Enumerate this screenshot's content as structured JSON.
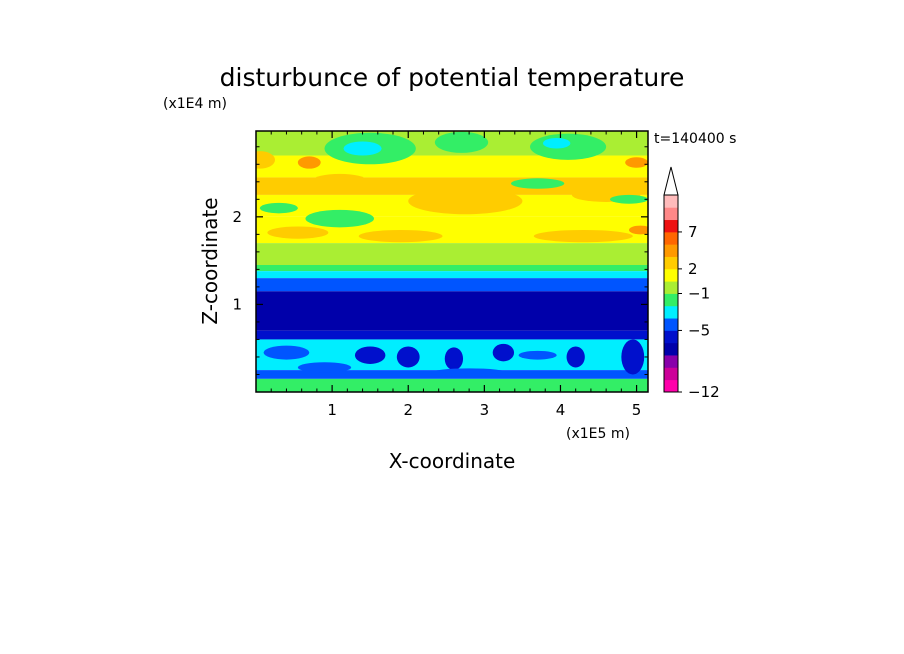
{
  "chart_data": {
    "type": "heatmap",
    "title": "disturbunce of potential temperature",
    "time_label": "t=140400 s",
    "xlabel": "X-coordinate",
    "ylabel": "Z-coordinate",
    "x_unit": "(x1E5 m)",
    "y_unit": "(x1E4 m)",
    "xlim": [
      0,
      5.15
    ],
    "ylim": [
      0,
      2.98
    ],
    "x_ticks": [
      "1",
      "2",
      "3",
      "4",
      "5"
    ],
    "y_ticks": [
      "1",
      "2"
    ],
    "colorbar": {
      "tick_labels": [
        "7",
        "2",
        "−1",
        "−5",
        "−12"
      ],
      "colors": [
        "#ff00aa",
        "#cc0099",
        "#8800aa",
        "#0000aa",
        "#0010cc",
        "#0055ff",
        "#00eeff",
        "#33ee66",
        "#aaee33",
        "#ffff00",
        "#ffcc00",
        "#ff9900",
        "#ff6600",
        "#ee1111",
        "#ff8888",
        "#ffbbbb"
      ],
      "extend_top": true
    },
    "layers": [
      {
        "z": [
          2.7,
          2.98
        ],
        "color": "#aaee33"
      },
      {
        "z": [
          2.45,
          2.7
        ],
        "color": "#ffff00"
      },
      {
        "z": [
          2.25,
          2.45
        ],
        "color": "#ffcc00"
      },
      {
        "z": [
          2.0,
          2.25
        ],
        "color": "#ffff00"
      },
      {
        "z": [
          1.7,
          2.0
        ],
        "color": "#ffff00"
      },
      {
        "z": [
          1.45,
          1.7
        ],
        "color": "#aaee33"
      },
      {
        "z": [
          1.38,
          1.45
        ],
        "color": "#33ee66"
      },
      {
        "z": [
          1.3,
          1.38
        ],
        "color": "#00eeff"
      },
      {
        "z": [
          1.15,
          1.3
        ],
        "color": "#0055ff"
      },
      {
        "z": [
          0.7,
          1.15
        ],
        "color": "#0000aa"
      },
      {
        "z": [
          0.6,
          0.7
        ],
        "color": "#0010cc"
      },
      {
        "z": [
          0.25,
          0.6
        ],
        "color": "#00eeff"
      },
      {
        "z": [
          0.15,
          0.25
        ],
        "color": "#0055ff"
      },
      {
        "z": [
          0.0,
          0.15
        ],
        "color": "#33ee66"
      }
    ],
    "features": [
      {
        "x": 0.05,
        "z": 2.65,
        "rx": 0.2,
        "rz": 0.1,
        "color": "#ffcc00"
      },
      {
        "x": 0.7,
        "z": 2.62,
        "rx": 0.15,
        "rz": 0.07,
        "color": "#ff9900"
      },
      {
        "x": 1.5,
        "z": 2.78,
        "rx": 0.6,
        "rz": 0.18,
        "color": "#33ee66"
      },
      {
        "x": 1.4,
        "z": 2.78,
        "rx": 0.25,
        "rz": 0.08,
        "color": "#00eeff"
      },
      {
        "x": 2.7,
        "z": 2.85,
        "rx": 0.35,
        "rz": 0.12,
        "color": "#33ee66"
      },
      {
        "x": 4.1,
        "z": 2.8,
        "rx": 0.5,
        "rz": 0.15,
        "color": "#33ee66"
      },
      {
        "x": 3.95,
        "z": 2.84,
        "rx": 0.18,
        "rz": 0.06,
        "color": "#00eeff"
      },
      {
        "x": 5.0,
        "z": 2.62,
        "rx": 0.15,
        "rz": 0.06,
        "color": "#ff9900"
      },
      {
        "x": 1.1,
        "z": 2.42,
        "rx": 0.35,
        "rz": 0.07,
        "color": "#ffcc00"
      },
      {
        "x": 2.75,
        "z": 2.18,
        "rx": 0.75,
        "rz": 0.15,
        "color": "#ffcc00"
      },
      {
        "x": 4.6,
        "z": 2.25,
        "rx": 0.45,
        "rz": 0.08,
        "color": "#ffcc00"
      },
      {
        "x": 0.3,
        "z": 2.1,
        "rx": 0.25,
        "rz": 0.06,
        "color": "#33ee66"
      },
      {
        "x": 1.1,
        "z": 1.98,
        "rx": 0.45,
        "rz": 0.1,
        "color": "#33ee66"
      },
      {
        "x": 3.7,
        "z": 2.38,
        "rx": 0.35,
        "rz": 0.06,
        "color": "#33ee66"
      },
      {
        "x": 4.9,
        "z": 2.2,
        "rx": 0.25,
        "rz": 0.05,
        "color": "#33ee66"
      },
      {
        "x": 0.55,
        "z": 1.82,
        "rx": 0.4,
        "rz": 0.07,
        "color": "#ffcc00"
      },
      {
        "x": 1.9,
        "z": 1.78,
        "rx": 0.55,
        "rz": 0.07,
        "color": "#ffcc00"
      },
      {
        "x": 4.3,
        "z": 1.78,
        "rx": 0.65,
        "rz": 0.07,
        "color": "#ffcc00"
      },
      {
        "x": 5.05,
        "z": 1.85,
        "rx": 0.15,
        "rz": 0.05,
        "color": "#ff9900"
      },
      {
        "x": 0.4,
        "z": 0.45,
        "rx": 0.3,
        "rz": 0.08,
        "color": "#0055ff"
      },
      {
        "x": 1.5,
        "z": 0.42,
        "rx": 0.2,
        "rz": 0.1,
        "color": "#0010cc"
      },
      {
        "x": 2.0,
        "z": 0.4,
        "rx": 0.15,
        "rz": 0.12,
        "color": "#0010cc"
      },
      {
        "x": 2.6,
        "z": 0.38,
        "rx": 0.12,
        "rz": 0.13,
        "color": "#0010cc"
      },
      {
        "x": 3.25,
        "z": 0.45,
        "rx": 0.14,
        "rz": 0.1,
        "color": "#0010cc"
      },
      {
        "x": 4.2,
        "z": 0.4,
        "rx": 0.12,
        "rz": 0.12,
        "color": "#0010cc"
      },
      {
        "x": 4.95,
        "z": 0.4,
        "rx": 0.15,
        "rz": 0.2,
        "color": "#0010cc"
      },
      {
        "x": 3.7,
        "z": 0.42,
        "rx": 0.25,
        "rz": 0.05,
        "color": "#0055ff"
      },
      {
        "x": 0.9,
        "z": 0.28,
        "rx": 0.35,
        "rz": 0.06,
        "color": "#0055ff"
      },
      {
        "x": 2.8,
        "z": 0.22,
        "rx": 0.5,
        "rz": 0.05,
        "color": "#0055ff"
      }
    ]
  }
}
